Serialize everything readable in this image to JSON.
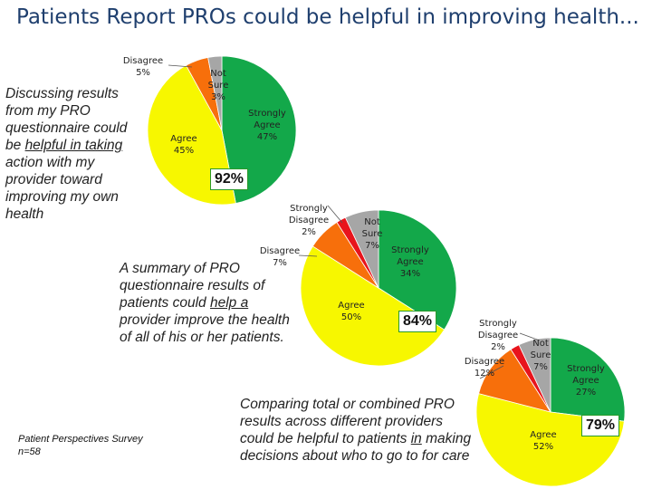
{
  "title": "Patients Report PROs could be helpful in improving health...",
  "statements": {
    "s1": [
      "Discussing results from my PRO questionnaire could be ",
      "helpful in taking",
      " action with my provider toward improving my own health"
    ],
    "s2": [
      "A summary of PRO questionnaire results of patients could ",
      "help a",
      " provider improve the health of all of his or her patients."
    ],
    "s3": [
      "Comparing total or combined PRO results across different providers could be helpful to patients ",
      "in",
      " making decisions about who to go to for care"
    ]
  },
  "source": {
    "line1": "Patient Perspectives Survey",
    "line2": "n=58"
  },
  "colors": {
    "strongly_agree": "#13a84a",
    "agree": "#f7f700",
    "disagree": "#f76f0b",
    "strongly_disagree": "#e8141c",
    "not_sure": "#a6a6a6"
  },
  "chart_data": [
    {
      "type": "pie",
      "categories": [
        "Strongly Agree",
        "Agree",
        "Disagree",
        "Not Sure"
      ],
      "values": [
        47,
        45,
        5,
        3
      ],
      "labels": [
        "Strongly Agree 47%",
        "Agree 45%",
        "Disagree 5%",
        "Not Sure 3%"
      ],
      "total_agree": "92%"
    },
    {
      "type": "pie",
      "categories": [
        "Strongly Agree",
        "Agree",
        "Disagree",
        "Strongly Disagree",
        "Not Sure"
      ],
      "values": [
        34,
        50,
        7,
        2,
        7
      ],
      "labels": [
        "Strongly Agree 34%",
        "Agree 50%",
        "Disagree 7%",
        "Strongly Disagree 2%",
        "Not Sure 7%"
      ],
      "total_agree": "84%"
    },
    {
      "type": "pie",
      "categories": [
        "Strongly Agree",
        "Agree",
        "Disagree",
        "Strongly Disagree",
        "Not Sure"
      ],
      "values": [
        27,
        52,
        12,
        2,
        7
      ],
      "labels": [
        "Strongly Agree 27%",
        "Agree 52%",
        "Disagree 12%",
        "Strongly Disagree 2%",
        "Not Sure 7%"
      ],
      "total_agree": "79%"
    }
  ]
}
